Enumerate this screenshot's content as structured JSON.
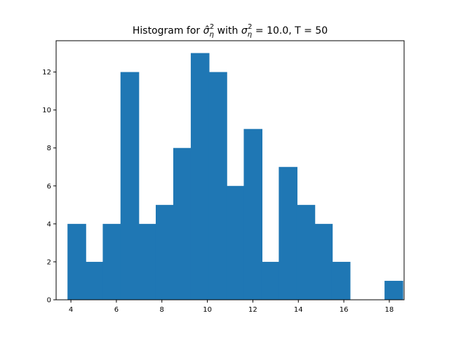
{
  "chart_data": {
    "type": "bar",
    "title": {
      "prefix": "Histogram for ",
      "symbol1": "σ̂",
      "sub1": "η",
      "sup1": "2",
      "middle": "  with ",
      "symbol2": "σ",
      "sub2": "η",
      "sup2": "2",
      "suffix": " = 10.0, T = 50"
    },
    "xlabel": "",
    "ylabel": "",
    "xlim": [
      3.35,
      18.65
    ],
    "ylim": [
      0,
      13.65
    ],
    "bar_width": 0.82,
    "x_ticks": [
      4,
      6,
      8,
      10,
      12,
      14,
      16,
      18
    ],
    "y_ticks": [
      0,
      2,
      4,
      6,
      8,
      10,
      12
    ],
    "color": "#1f77b4",
    "bars": [
      {
        "x": 4.26,
        "value": 4
      },
      {
        "x": 5.04,
        "value": 2
      },
      {
        "x": 5.81,
        "value": 4
      },
      {
        "x": 6.59,
        "value": 12
      },
      {
        "x": 7.36,
        "value": 4
      },
      {
        "x": 8.14,
        "value": 5
      },
      {
        "x": 8.91,
        "value": 8
      },
      {
        "x": 9.68,
        "value": 13
      },
      {
        "x": 10.46,
        "value": 12
      },
      {
        "x": 11.23,
        "value": 6
      },
      {
        "x": 12.01,
        "value": 9
      },
      {
        "x": 12.78,
        "value": 2
      },
      {
        "x": 13.55,
        "value": 7
      },
      {
        "x": 14.33,
        "value": 5
      },
      {
        "x": 15.1,
        "value": 4
      },
      {
        "x": 15.88,
        "value": 2
      },
      {
        "x": 16.65,
        "value": 0
      },
      {
        "x": 17.43,
        "value": 0
      },
      {
        "x": 18.2,
        "value": 1
      }
    ]
  }
}
